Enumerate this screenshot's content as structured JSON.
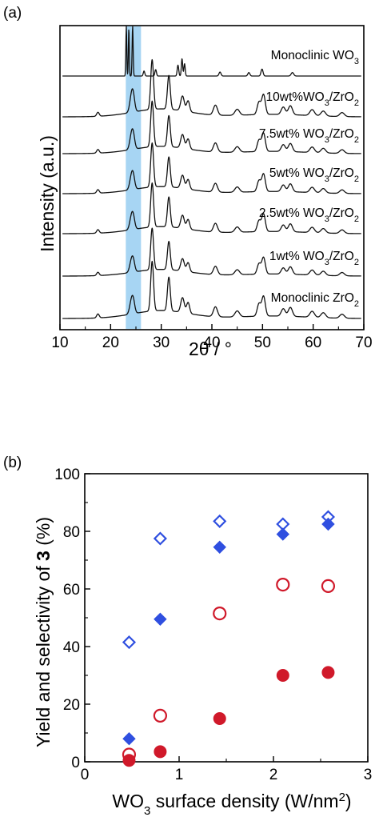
{
  "chart_data": [
    {
      "panel": "(a)",
      "type": "line",
      "xlabel": "2θ / °",
      "ylabel": "Intensity (a.u.)",
      "xlim": [
        10,
        70
      ],
      "xticks": [
        "10",
        "20",
        "30",
        "40",
        "50",
        "60",
        "70"
      ],
      "highlight_band": {
        "x": [
          23,
          26
        ],
        "color": "#5fb3ea"
      },
      "series": [
        {
          "name": "Monoclinic WO3",
          "label_main": "Monoclinic WO",
          "label_sub": "3",
          "label_tail": "",
          "style": "wo3"
        },
        {
          "name": "10wt%WO3/ZrO2",
          "label_main": "10wt%WO",
          "label_sub": "3",
          "label_tail": "/ZrO",
          "label_sub2": "2",
          "style": "zro2"
        },
        {
          "name": "7.5wt% WO3/ZrO2",
          "label_main": "7.5wt% WO",
          "label_sub": "3",
          "label_tail": "/ZrO",
          "label_sub2": "2",
          "style": "zro2"
        },
        {
          "name": "5wt% WO3/ZrO2",
          "label_main": "5wt% WO",
          "label_sub": "3",
          "label_tail": "/ZrO",
          "label_sub2": "2",
          "style": "zro2"
        },
        {
          "name": "2.5wt% WO3/ZrO2",
          "label_main": "2.5wt% WO",
          "label_sub": "3",
          "label_tail": "/ZrO",
          "label_sub2": "2",
          "style": "zro2"
        },
        {
          "name": "1wt% WO3/ZrO2",
          "label_main": "1wt% WO",
          "label_sub": "3",
          "label_tail": "/ZrO",
          "label_sub2": "2",
          "style": "zro2"
        },
        {
          "name": "Monoclinic ZrO2",
          "label_main": "Monoclinic ZrO",
          "label_sub": "2",
          "label_tail": "",
          "style": "zro2"
        }
      ]
    },
    {
      "panel": "(b)",
      "type": "scatter",
      "xlabel_main": "WO",
      "xlabel_sub": "3",
      "xlabel_tail": " surface density (W/nm",
      "xlabel_sup": "2",
      "xlabel_end": ")",
      "ylabel_main": "Yield and selectivity of ",
      "ylabel_bold": "3",
      "ylabel_tail": " (%)",
      "xlim": [
        0,
        3
      ],
      "ylim": [
        0,
        100
      ],
      "xticks": [
        "0",
        "1",
        "2",
        "3"
      ],
      "yticks": [
        "0",
        "20",
        "40",
        "60",
        "80",
        "100"
      ],
      "series": [
        {
          "marker": "diamond-open",
          "color": "#2f4fe0",
          "x": [
            0.47,
            0.8,
            1.43,
            2.1,
            2.58
          ],
          "y": [
            41.5,
            77.5,
            83.5,
            82.5,
            85
          ]
        },
        {
          "marker": "diamond-filled",
          "color": "#2f4fe0",
          "x": [
            0.47,
            0.8,
            1.43,
            2.1,
            2.58
          ],
          "y": [
            8,
            49.5,
            74.5,
            79,
            82.5
          ]
        },
        {
          "marker": "circle-open",
          "color": "#d0192a",
          "x": [
            0.47,
            0.8,
            1.43,
            2.1,
            2.58
          ],
          "y": [
            2.5,
            16,
            51.5,
            61.5,
            61
          ]
        },
        {
          "marker": "circle-filled",
          "color": "#d0192a",
          "x": [
            0.47,
            0.8,
            1.43,
            2.1,
            2.58
          ],
          "y": [
            0.5,
            3.5,
            15,
            30,
            31
          ]
        }
      ]
    }
  ]
}
